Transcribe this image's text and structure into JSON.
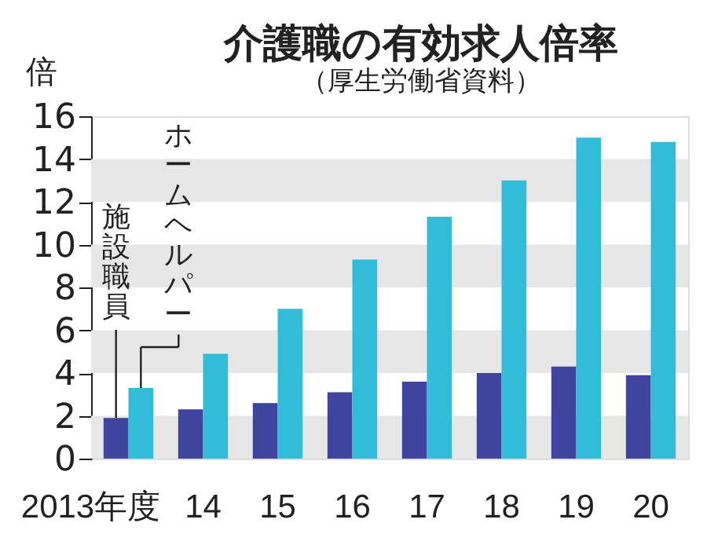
{
  "chart_data": {
    "type": "bar",
    "title": "介護職の有効求人倍率",
    "subtitle": "（厚生労働省資料）",
    "ylabel": "倍",
    "categories": [
      "2013年度",
      "14",
      "15",
      "16",
      "17",
      "18",
      "19",
      "20"
    ],
    "series": [
      {
        "name": "施設職員",
        "color": "#3f449e",
        "values": [
          1.9,
          2.3,
          2.6,
          3.1,
          3.6,
          4.0,
          4.3,
          3.9
        ]
      },
      {
        "name": "ホームヘルパー",
        "color": "#33bcd8",
        "values": [
          3.3,
          4.9,
          7.0,
          9.3,
          11.3,
          13.0,
          15.0,
          14.8
        ]
      }
    ],
    "ylim": [
      0,
      16
    ],
    "yticks": [
      0,
      2,
      4,
      6,
      8,
      10,
      12,
      14,
      16
    ],
    "grid": false,
    "bands": [
      {
        "axis": "y",
        "from": 0,
        "to": 2,
        "color": "#e6e6e6"
      },
      {
        "axis": "y",
        "from": 4,
        "to": 6,
        "color": "#e6e6e6"
      },
      {
        "axis": "y",
        "from": 8,
        "to": 10,
        "color": "#e6e6e6"
      },
      {
        "axis": "y",
        "from": 12,
        "to": 14,
        "color": "#e6e6e6"
      }
    ]
  }
}
